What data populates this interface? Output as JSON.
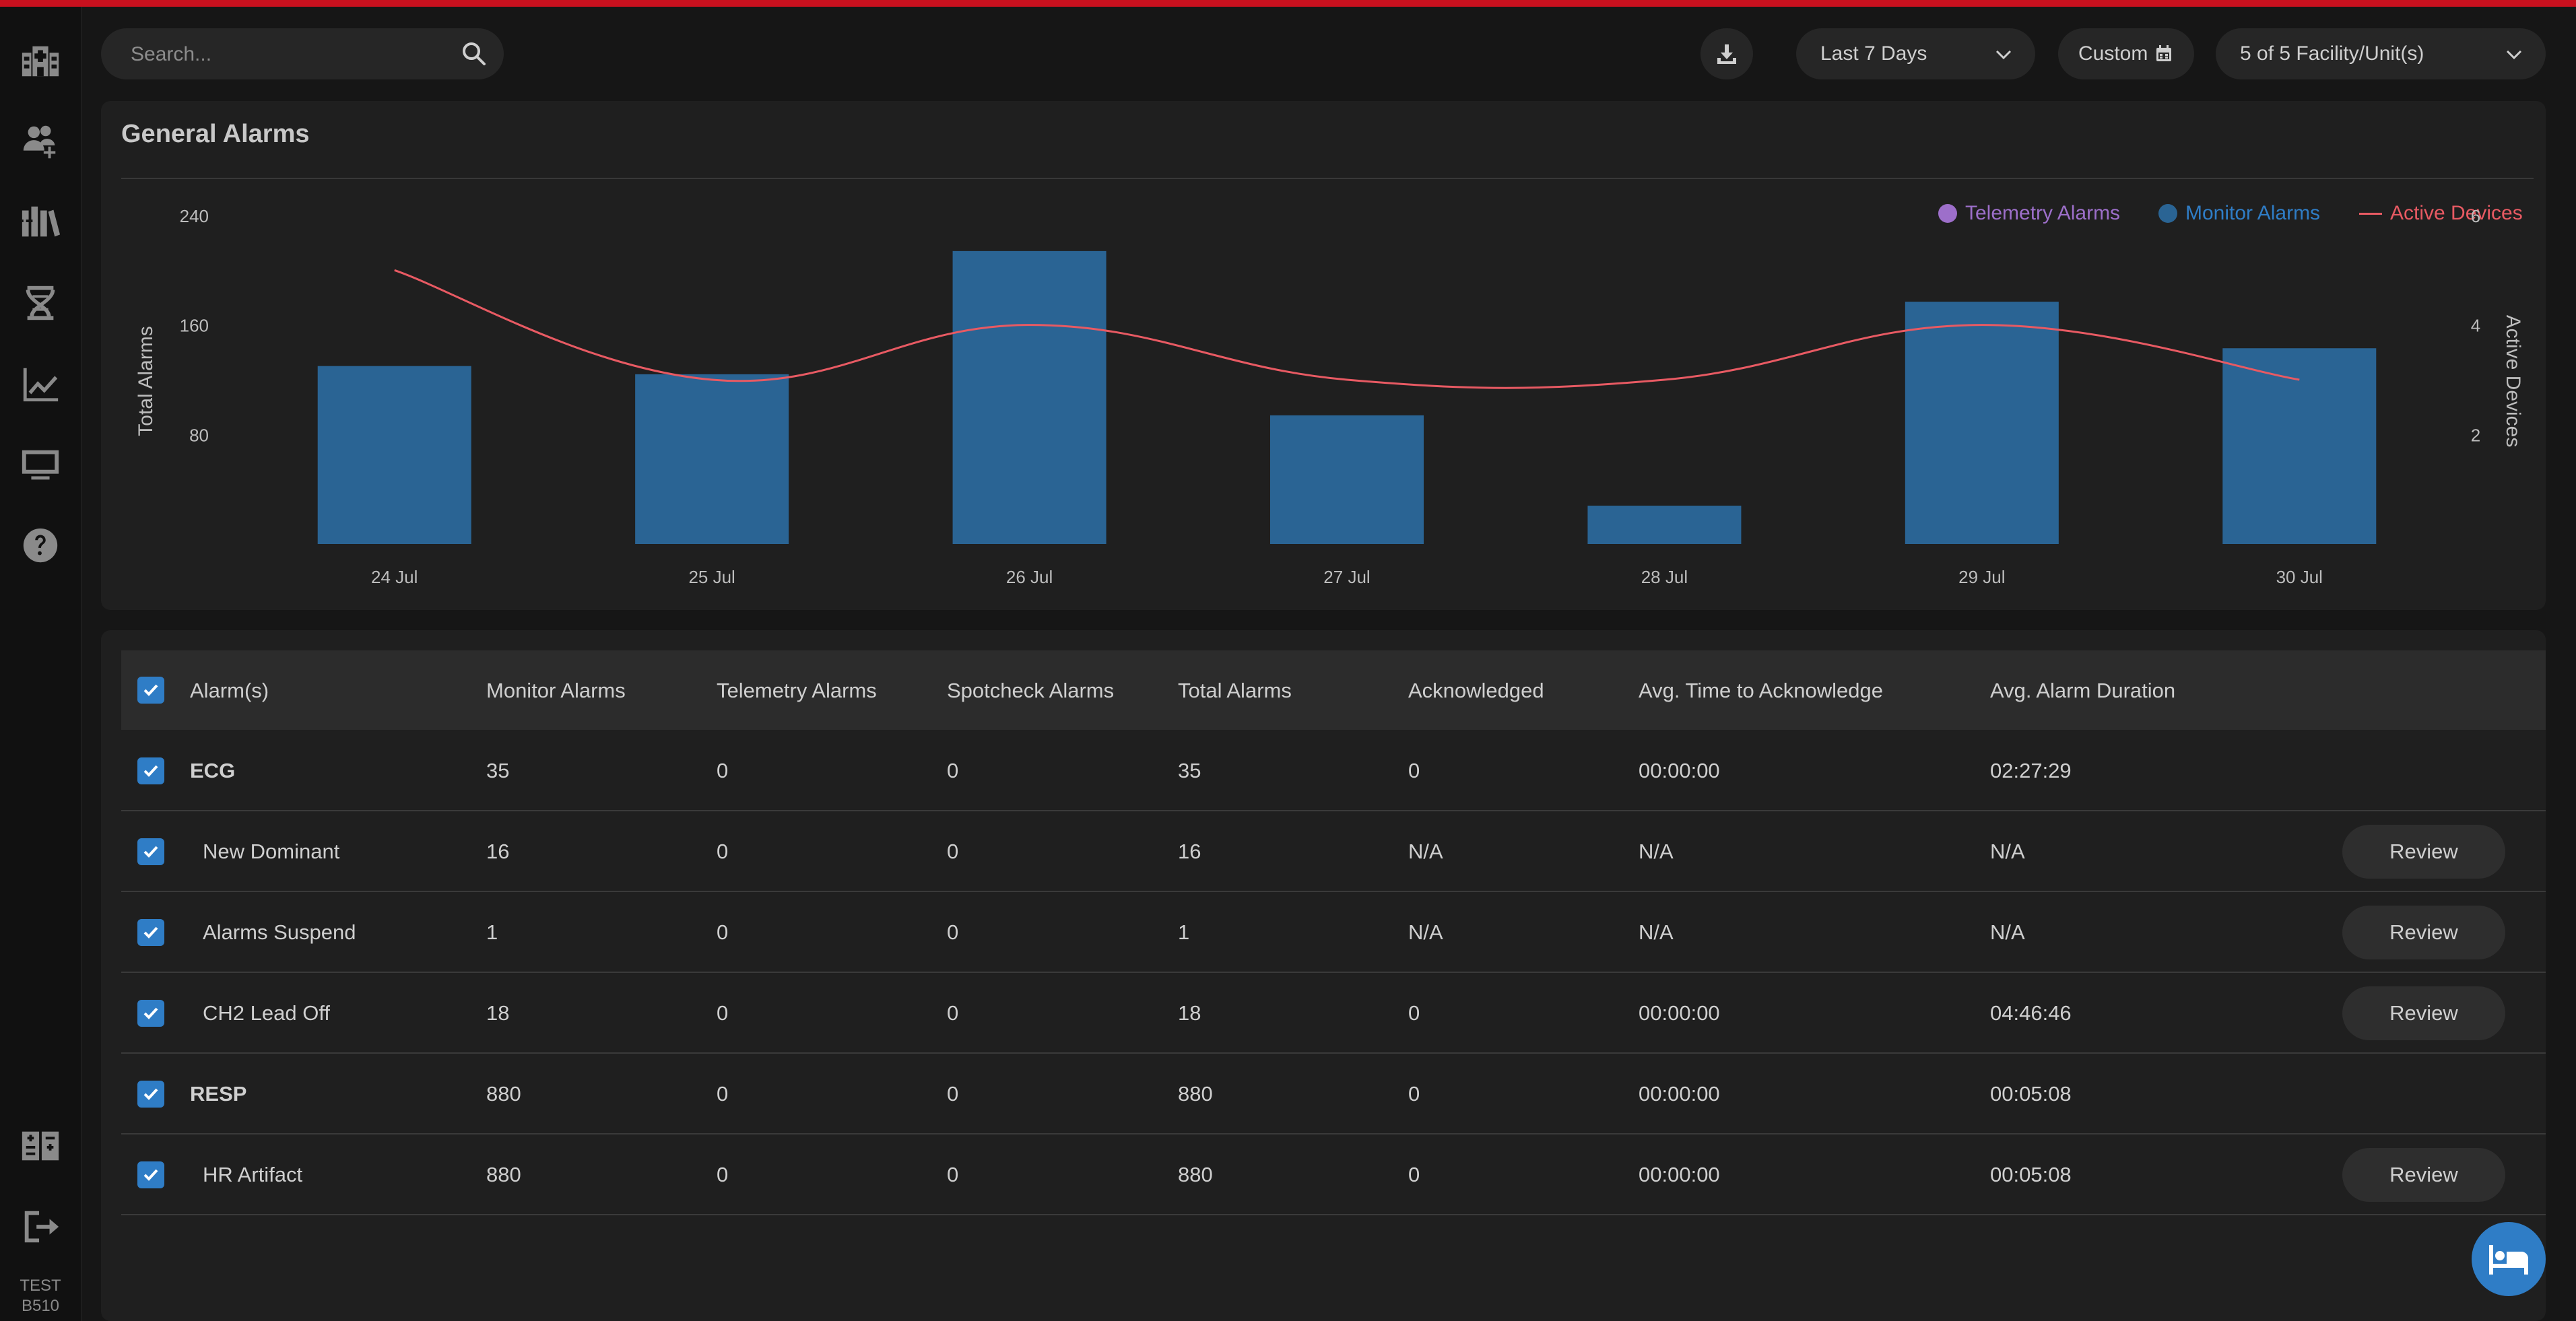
{
  "sidebar": {
    "icons": [
      "hospital-icon",
      "add-user-icon",
      "books-icon",
      "dna-icon",
      "trend-chart-icon",
      "monitor-icon",
      "help-icon",
      "facility-icon",
      "logout-icon"
    ],
    "footer_line1": "TEST",
    "footer_line2": "B510"
  },
  "search": {
    "placeholder": "Search..."
  },
  "toolbar": {
    "range_label": "Last 7 Days",
    "custom_label": "Custom",
    "facility_label": "5 of 5 Facility/Unit(s)"
  },
  "panel": {
    "title": "General Alarms"
  },
  "legend": {
    "telemetry": "Telemetry Alarms",
    "monitor": "Monitor Alarms",
    "active": "Active Devices"
  },
  "chart_data": {
    "type": "bar",
    "title": "",
    "categories": [
      "24 Jul",
      "25 Jul",
      "26 Jul",
      "27 Jul",
      "28 Jul",
      "29 Jul",
      "30 Jul"
    ],
    "ylabel": "Total Alarms",
    "y2label": "Active Devices",
    "ylim": [
      0,
      240
    ],
    "yticks": [
      80,
      160,
      240
    ],
    "y2lim": [
      0,
      6
    ],
    "y2ticks": [
      2,
      4,
      6
    ],
    "series": [
      {
        "name": "Monitor Alarms",
        "type": "bar",
        "color": "#2a6494",
        "values": [
          130,
          124,
          214,
          94,
          28,
          177,
          143
        ]
      },
      {
        "name": "Telemetry Alarms",
        "type": "bar",
        "color": "#9d6fca",
        "values": [
          0,
          0,
          0,
          0,
          0,
          0,
          0
        ]
      },
      {
        "name": "Active Devices",
        "type": "line",
        "axis": "y2",
        "color": "#e85a63",
        "values": [
          5,
          3,
          4,
          3,
          3,
          4,
          3
        ]
      }
    ],
    "legend": "top-right",
    "grid": false
  },
  "table": {
    "headers": [
      "Alarm(s)",
      "Monitor Alarms",
      "Telemetry Alarms",
      "Spotcheck Alarms",
      "Total Alarms",
      "Acknowledged",
      "Avg. Time to Acknowledge",
      "Avg. Alarm Duration"
    ],
    "review_label": "Review",
    "rows": [
      {
        "name": "ECG",
        "monitor": "35",
        "telemetry": "0",
        "spotcheck": "0",
        "total": "35",
        "ack": "0",
        "avg_ack": "00:00:00",
        "duration": "02:27:29"
      },
      {
        "name": "New Dominant",
        "monitor": "16",
        "telemetry": "0",
        "spotcheck": "0",
        "total": "16",
        "ack": "N/A",
        "avg_ack": "N/A",
        "duration": "N/A"
      },
      {
        "name": "Alarms Suspend",
        "monitor": "1",
        "telemetry": "0",
        "spotcheck": "0",
        "total": "1",
        "ack": "N/A",
        "avg_ack": "N/A",
        "duration": "N/A"
      },
      {
        "name": "CH2 Lead Off",
        "monitor": "18",
        "telemetry": "0",
        "spotcheck": "0",
        "total": "18",
        "ack": "0",
        "avg_ack": "00:00:00",
        "duration": "04:46:46"
      },
      {
        "name": "RESP",
        "monitor": "880",
        "telemetry": "0",
        "spotcheck": "0",
        "total": "880",
        "ack": "0",
        "avg_ack": "00:00:00",
        "duration": "00:05:08"
      },
      {
        "name": "HR Artifact",
        "monitor": "880",
        "telemetry": "0",
        "spotcheck": "0",
        "total": "880",
        "ack": "0",
        "avg_ack": "00:00:00",
        "duration": "00:05:08"
      }
    ]
  }
}
